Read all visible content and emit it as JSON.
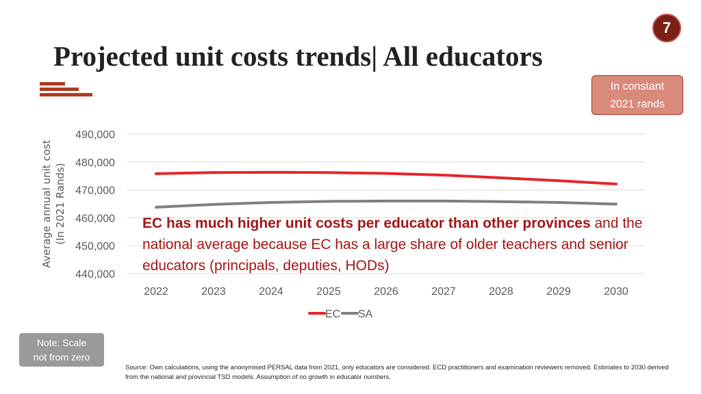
{
  "page_number": "7",
  "title": "Projected unit costs trends| All educators",
  "rands_note": [
    "In constant",
    "2021 rands"
  ],
  "annotation": {
    "bold": "EC has much higher unit costs per educator than other provinces",
    "rest": " and the national average because EC has a large share of older teachers and senior educators (principals, deputies, HODs)"
  },
  "scale_note": [
    "Note: Scale",
    "not from zero"
  ],
  "source": "Source: Own calculations, using the anonymised PERSAL data from 2021, only educators are considered. ECD practitioners and examination reviewers removed. Estimates to 2030 derived from the national and provincial TSD models. Assumption of no growth in educator numbers.",
  "chart_data": {
    "type": "line",
    "title": "",
    "xlabel": "",
    "ylabel": [
      "Average annual unit cost",
      "(In 2021 Rands)"
    ],
    "x": [
      "2022",
      "2023",
      "2024",
      "2025",
      "2026",
      "2027",
      "2028",
      "2029",
      "2030"
    ],
    "ylim": [
      440000,
      490000
    ],
    "yticks": [
      440000,
      450000,
      460000,
      470000,
      480000,
      490000
    ],
    "ytick_labels": [
      "440,000",
      "450,000",
      "460,000",
      "470,000",
      "480,000",
      "490,000"
    ],
    "grid": true,
    "legend": "bottom",
    "series": [
      {
        "name": "EC",
        "color": "#e3262b",
        "values": [
          475800,
          476200,
          476300,
          476200,
          475900,
          475300,
          474300,
          473300,
          472100
        ]
      },
      {
        "name": "SA",
        "color": "#7f7f7f",
        "values": [
          463800,
          464800,
          465500,
          465900,
          466000,
          466000,
          465800,
          465500,
          464900
        ]
      }
    ]
  }
}
